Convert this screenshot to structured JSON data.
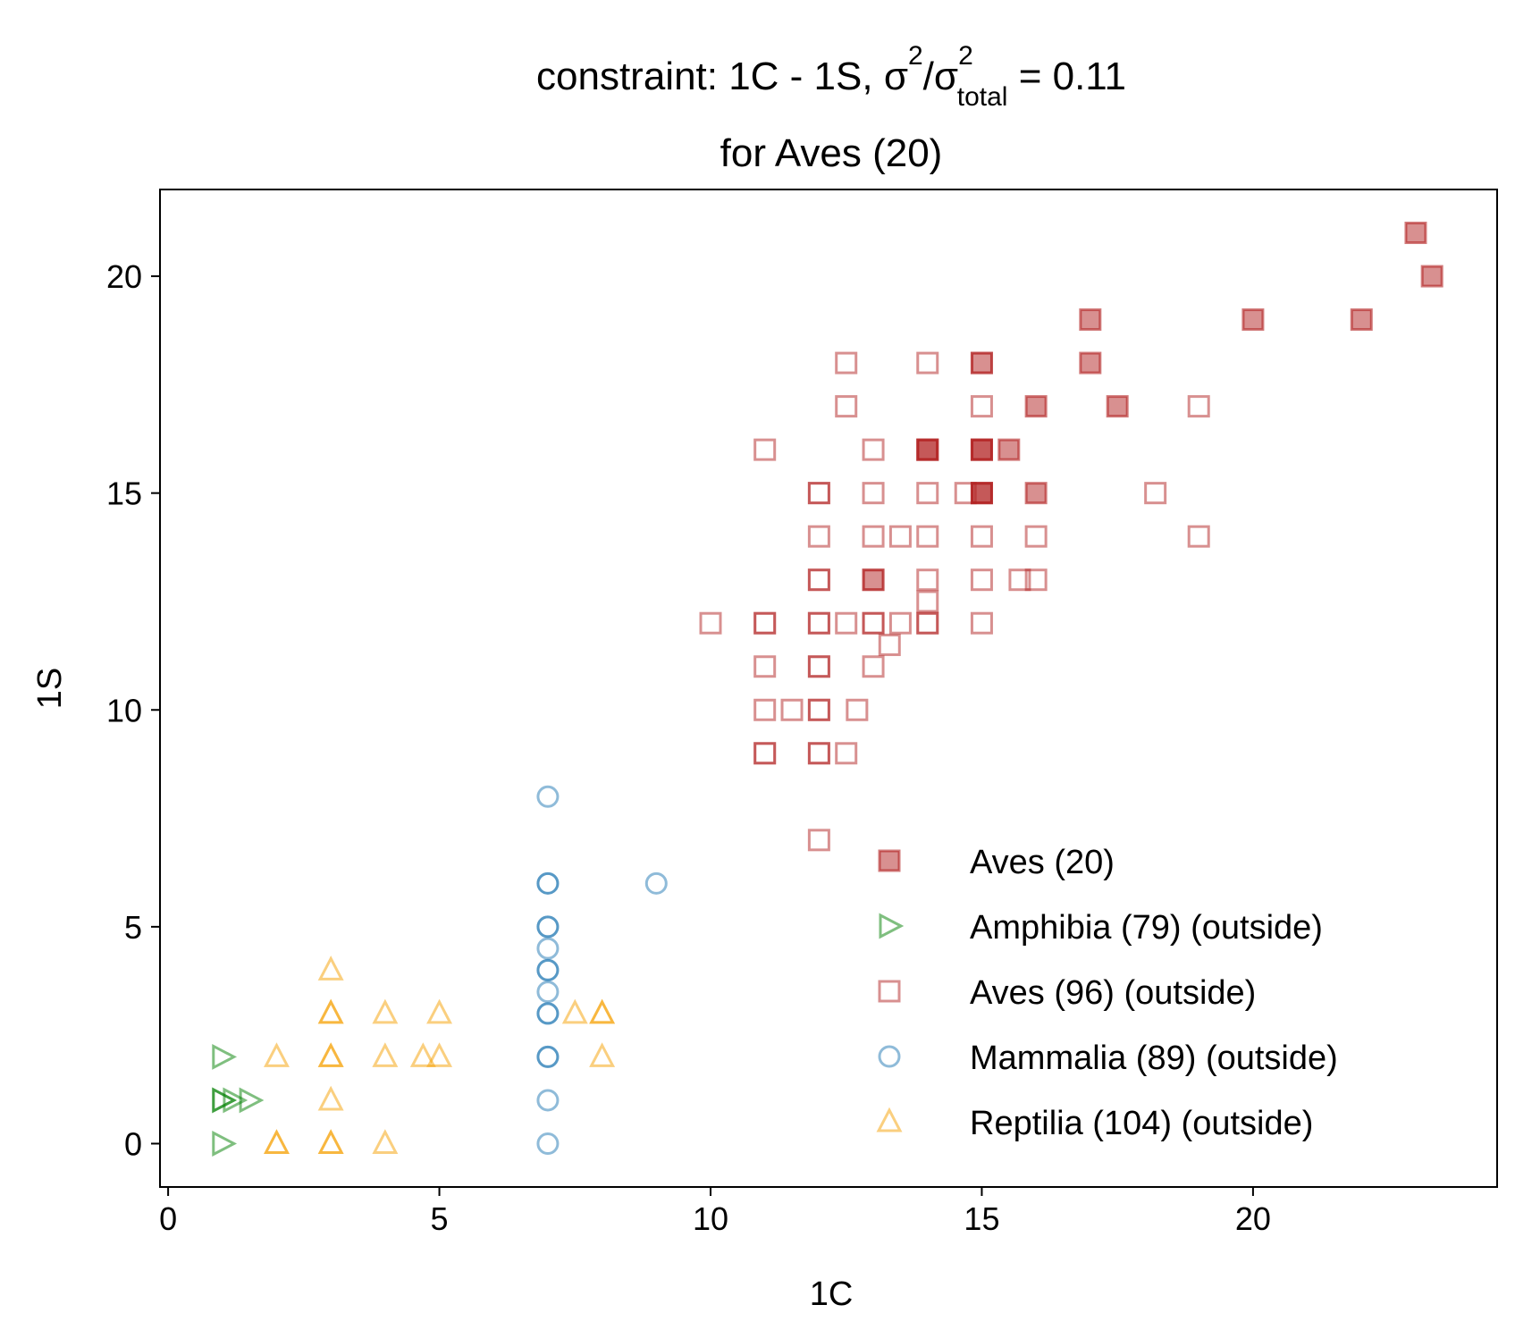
{
  "chart_data": {
    "type": "scatter",
    "title": {
      "prefix": "constraint: 1C - 1S, σ",
      "sup1": "2",
      "mid": "/σ",
      "sup2": "2",
      "sub": "total",
      "suffix": " =  0.11",
      "line2": "for Aves (20)"
    },
    "xlabel": "1C",
    "ylabel": "1S",
    "xlim": [
      -0.15,
      24.5
    ],
    "ylim": [
      -1.0,
      22.0
    ],
    "xticks": [
      0,
      5,
      10,
      15,
      20
    ],
    "yticks": [
      0,
      5,
      10,
      15,
      20
    ],
    "grid": false,
    "legend_position": "lower-right",
    "series": [
      {
        "name": "Aves (20)",
        "marker": "square-filled",
        "color": "#b22222",
        "points": [
          [
            23,
            21
          ],
          [
            23.3,
            20
          ],
          [
            17,
            19
          ],
          [
            20,
            19
          ],
          [
            22,
            19
          ],
          [
            15,
            18
          ],
          [
            17,
            18
          ],
          [
            16,
            17
          ],
          [
            17.5,
            17
          ],
          [
            14,
            16
          ],
          [
            15,
            16
          ],
          [
            15,
            16
          ],
          [
            15.5,
            16
          ],
          [
            15,
            15
          ],
          [
            16,
            15
          ],
          [
            13,
            13
          ],
          [
            14,
            16
          ],
          [
            15,
            15
          ]
        ]
      },
      {
        "name": "Amphibia (79) (outside)",
        "marker": "triangle-right-open",
        "color": "#008000",
        "points": [
          [
            1,
            2
          ],
          [
            1,
            1
          ],
          [
            1,
            1
          ],
          [
            1.2,
            1
          ],
          [
            1.5,
            1
          ],
          [
            1,
            0
          ]
        ]
      },
      {
        "name": "Aves (96) (outside)",
        "marker": "square-open",
        "color": "#b22222",
        "points": [
          [
            12.5,
            18
          ],
          [
            14,
            18
          ],
          [
            15,
            18
          ],
          [
            12.5,
            17
          ],
          [
            15,
            17
          ],
          [
            19,
            17
          ],
          [
            11,
            16
          ],
          [
            13,
            16
          ],
          [
            14,
            16
          ],
          [
            15,
            16
          ],
          [
            12,
            15
          ],
          [
            13,
            15
          ],
          [
            14,
            15
          ],
          [
            14.7,
            15
          ],
          [
            15,
            15
          ],
          [
            18.2,
            15
          ],
          [
            12,
            14
          ],
          [
            13,
            14
          ],
          [
            13.5,
            14
          ],
          [
            14,
            14
          ],
          [
            15,
            14
          ],
          [
            16,
            14
          ],
          [
            19,
            14
          ],
          [
            12,
            13
          ],
          [
            13,
            13
          ],
          [
            14,
            13
          ],
          [
            15,
            13
          ],
          [
            15.7,
            13
          ],
          [
            16,
            13
          ],
          [
            14,
            12.5
          ],
          [
            10,
            12
          ],
          [
            11,
            12
          ],
          [
            12,
            12
          ],
          [
            12.5,
            12
          ],
          [
            13,
            12
          ],
          [
            13.5,
            12
          ],
          [
            14,
            12
          ],
          [
            15,
            12
          ],
          [
            13.3,
            11.5
          ],
          [
            11,
            11
          ],
          [
            12,
            11
          ],
          [
            13,
            11
          ],
          [
            11,
            10
          ],
          [
            11.5,
            10
          ],
          [
            12,
            10
          ],
          [
            12.7,
            10
          ],
          [
            11,
            9
          ],
          [
            12,
            9
          ],
          [
            12.5,
            9
          ],
          [
            12,
            7
          ],
          [
            11,
            12
          ],
          [
            12,
            12
          ],
          [
            12,
            15
          ],
          [
            12,
            13
          ],
          [
            13,
            12
          ],
          [
            12,
            11
          ],
          [
            12,
            10
          ],
          [
            11,
            9
          ],
          [
            12,
            9
          ],
          [
            14,
            12
          ]
        ]
      },
      {
        "name": "Mammalia (89) (outside)",
        "marker": "circle-open",
        "color": "#1f77b4",
        "points": [
          [
            7,
            8
          ],
          [
            7,
            6
          ],
          [
            9,
            6
          ],
          [
            7,
            5
          ],
          [
            7,
            4.5
          ],
          [
            7,
            4
          ],
          [
            7,
            3.5
          ],
          [
            7,
            3
          ],
          [
            7,
            2
          ],
          [
            7,
            1
          ],
          [
            7,
            0
          ],
          [
            7,
            6
          ],
          [
            7,
            5
          ],
          [
            7,
            4
          ],
          [
            7,
            3
          ],
          [
            7,
            2
          ]
        ]
      },
      {
        "name": "Reptilia (104) (outside)",
        "marker": "triangle-up-open",
        "color": "#f5a000",
        "points": [
          [
            3,
            4
          ],
          [
            3,
            3
          ],
          [
            4,
            3
          ],
          [
            5,
            3
          ],
          [
            7.5,
            3
          ],
          [
            8,
            3
          ],
          [
            2,
            2
          ],
          [
            3,
            2
          ],
          [
            4,
            2
          ],
          [
            4.7,
            2
          ],
          [
            5,
            2
          ],
          [
            8,
            2
          ],
          [
            3,
            1
          ],
          [
            2,
            0
          ],
          [
            3,
            0
          ],
          [
            4,
            0
          ],
          [
            3,
            3
          ],
          [
            3,
            2
          ],
          [
            8,
            3
          ],
          [
            2,
            0
          ],
          [
            3,
            0
          ]
        ]
      }
    ]
  }
}
